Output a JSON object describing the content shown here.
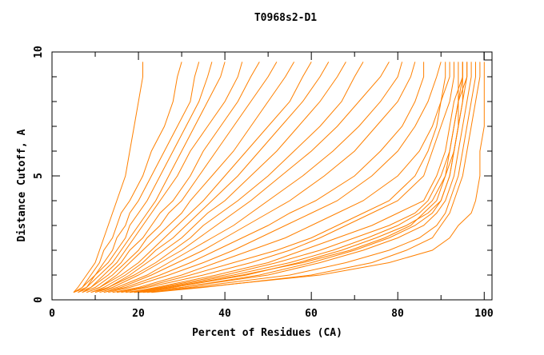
{
  "chart_data": {
    "type": "line",
    "title": "T0968s2-D1",
    "xlabel": "Percent of Residues (CA)",
    "ylabel": "Distance Cutoff, A",
    "xlim": [
      0,
      101.8
    ],
    "ylim": [
      0,
      10
    ],
    "x_ticks": [
      "0",
      "20",
      "40",
      "60",
      "80",
      "100"
    ],
    "y_ticks": [
      "0",
      "5",
      "10"
    ],
    "grid": false,
    "line_color": "#ff8000",
    "cutoffs": [
      0.3,
      0.5,
      1,
      1.5,
      2,
      2.5,
      3,
      3.5,
      4,
      5,
      6,
      7,
      8,
      9,
      9.6
    ],
    "series": [
      {
        "x": [
          20,
          30,
          50,
          62,
          72,
          80,
          86,
          89,
          91,
          93,
          94,
          95,
          96,
          97,
          97
        ]
      },
      {
        "x": [
          22,
          32,
          55,
          68,
          78,
          85,
          89,
          91,
          92,
          94,
          95,
          96,
          97,
          98,
          98
        ]
      },
      {
        "x": [
          23,
          35,
          60,
          74,
          82,
          88,
          90,
          92,
          93,
          95,
          96,
          97,
          98,
          99,
          99
        ]
      },
      {
        "x": [
          21,
          34,
          62,
          78,
          88,
          92,
          94,
          97,
          98,
          99,
          99,
          100,
          100,
          100,
          100
        ]
      },
      {
        "x": [
          19,
          28,
          45,
          57,
          67,
          75,
          82,
          87,
          90,
          92,
          93,
          94,
          95,
          96,
          96
        ]
      },
      {
        "x": [
          18,
          26,
          42,
          55,
          65,
          73,
          80,
          85,
          88,
          91,
          93,
          94,
          95,
          95,
          95
        ]
      },
      {
        "x": [
          20,
          30,
          48,
          60,
          70,
          78,
          84,
          88,
          90,
          92,
          93,
          94,
          94,
          95,
          95
        ]
      },
      {
        "x": [
          17,
          25,
          40,
          52,
          62,
          70,
          78,
          84,
          87,
          90,
          92,
          93,
          94,
          94,
          94
        ]
      },
      {
        "x": [
          19,
          27,
          44,
          58,
          69,
          77,
          83,
          86,
          89,
          91,
          92,
          93,
          94,
          96,
          96
        ]
      },
      {
        "x": [
          18,
          24,
          38,
          50,
          58,
          66,
          74,
          80,
          86,
          89,
          91,
          92,
          93,
          95,
          95
        ]
      },
      {
        "x": [
          16,
          22,
          35,
          46,
          55,
          62,
          68,
          74,
          80,
          86,
          88,
          90,
          92,
          93,
          93
        ]
      },
      {
        "x": [
          15,
          21,
          32,
          42,
          52,
          60,
          66,
          72,
          78,
          84,
          87,
          89,
          90,
          92,
          92
        ]
      },
      {
        "x": [
          14,
          20,
          30,
          38,
          46,
          54,
          60,
          66,
          72,
          80,
          85,
          88,
          90,
          91,
          91
        ]
      },
      {
        "x": [
          13,
          18,
          27,
          35,
          42,
          48,
          54,
          60,
          66,
          74,
          80,
          84,
          87,
          89,
          90
        ]
      },
      {
        "x": [
          12,
          17,
          25,
          32,
          38,
          44,
          50,
          55,
          61,
          70,
          76,
          81,
          84,
          86,
          86
        ]
      },
      {
        "x": [
          12,
          16,
          23,
          29,
          35,
          40,
          45,
          50,
          55,
          63,
          70,
          75,
          80,
          83,
          84
        ]
      },
      {
        "x": [
          11,
          15,
          22,
          27,
          32,
          37,
          42,
          46,
          50,
          58,
          65,
          71,
          76,
          80,
          81
        ]
      },
      {
        "x": [
          10,
          14,
          20,
          25,
          30,
          34,
          38,
          42,
          46,
          53,
          60,
          66,
          71,
          76,
          78
        ]
      },
      {
        "x": [
          10,
          13,
          19,
          24,
          28,
          32,
          35,
          39,
          43,
          50,
          56,
          62,
          67,
          70,
          72
        ]
      },
      {
        "x": [
          9,
          13,
          18,
          22,
          26,
          30,
          33,
          36,
          40,
          46,
          52,
          57,
          62,
          66,
          68
        ]
      },
      {
        "x": [
          9,
          12,
          17,
          21,
          24,
          28,
          31,
          34,
          37,
          43,
          48,
          53,
          58,
          62,
          64
        ]
      },
      {
        "x": [
          8,
          11,
          16,
          20,
          23,
          26,
          29,
          32,
          35,
          40,
          45,
          50,
          55,
          58,
          60
        ]
      },
      {
        "x": [
          8,
          11,
          15,
          18,
          21,
          24,
          27,
          30,
          32,
          37,
          42,
          46,
          50,
          54,
          56
        ]
      },
      {
        "x": [
          7,
          10,
          14,
          17,
          20,
          22,
          25,
          27,
          30,
          34,
          38,
          42,
          46,
          50,
          52
        ]
      },
      {
        "x": [
          7,
          9,
          13,
          16,
          18,
          21,
          23,
          25,
          28,
          32,
          35,
          39,
          43,
          46,
          48
        ]
      },
      {
        "x": [
          6,
          9,
          12,
          15,
          17,
          19,
          21,
          23,
          25,
          29,
          32,
          36,
          40,
          43,
          44
        ]
      },
      {
        "x": [
          6,
          8,
          11,
          14,
          16,
          18,
          20,
          22,
          24,
          27,
          30,
          33,
          36,
          39,
          40
        ]
      },
      {
        "x": [
          5,
          8,
          10,
          13,
          15,
          17,
          18,
          20,
          22,
          25,
          28,
          31,
          34,
          36,
          37
        ]
      },
      {
        "x": [
          5,
          7,
          10,
          12,
          14,
          15,
          17,
          18,
          20,
          23,
          26,
          29,
          32,
          33,
          34
        ]
      },
      {
        "x": [
          5,
          7,
          9,
          11,
          12,
          14,
          15,
          16,
          18,
          21,
          23,
          26,
          28,
          29,
          30
        ]
      },
      {
        "x": [
          5,
          6,
          8,
          10,
          11,
          12,
          13,
          14,
          15,
          17,
          18,
          19,
          20,
          21,
          21
        ]
      }
    ]
  }
}
